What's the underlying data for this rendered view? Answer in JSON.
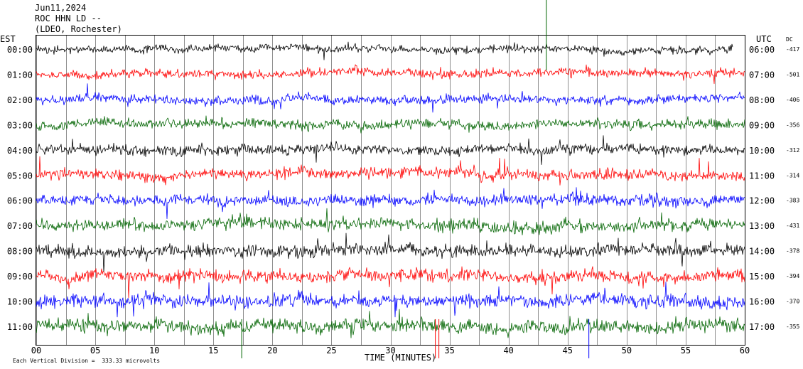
{
  "header": {
    "date": "Jun11,2024",
    "station_line": "ROC HHN LD --",
    "network_line": "(LDEO, Rochester)"
  },
  "left_timezone": "EST",
  "right_timezone": "UTC",
  "dc_header": "DC",
  "footer_note": "Each Vertical Division =  333.33 microvolts",
  "chart_data": {
    "type": "line",
    "title": "",
    "xlabel": "TIME (MINUTES)",
    "xlim": [
      0,
      60
    ],
    "x_ticks": [
      "00",
      "05",
      "10",
      "15",
      "20",
      "25",
      "30",
      "35",
      "40",
      "45",
      "50",
      "55",
      "60"
    ],
    "row_colors": [
      "#000000",
      "#ff0000",
      "#0000ff",
      "#006400"
    ],
    "rows": [
      {
        "est": "00:00",
        "utc": "06:00",
        "dc": "-417",
        "color": "#000000",
        "end_minute": 59
      },
      {
        "est": "01:00",
        "utc": "07:00",
        "dc": "-501",
        "color": "#ff0000",
        "end_minute": 60
      },
      {
        "est": "02:00",
        "utc": "08:00",
        "dc": "-406",
        "color": "#0000ff",
        "end_minute": 60
      },
      {
        "est": "03:00",
        "utc": "09:00",
        "dc": "-356",
        "color": "#006400",
        "end_minute": 60
      },
      {
        "est": "04:00",
        "utc": "10:00",
        "dc": "-312",
        "color": "#000000",
        "end_minute": 60
      },
      {
        "est": "05:00",
        "utc": "11:00",
        "dc": "-314",
        "color": "#ff0000",
        "end_minute": 60
      },
      {
        "est": "06:00",
        "utc": "12:00",
        "dc": "-383",
        "color": "#0000ff",
        "end_minute": 60
      },
      {
        "est": "07:00",
        "utc": "13:00",
        "dc": "-431",
        "color": "#006400",
        "end_minute": 60
      },
      {
        "est": "08:00",
        "utc": "14:00",
        "dc": "-378",
        "color": "#000000",
        "end_minute": 60
      },
      {
        "est": "09:00",
        "utc": "15:00",
        "dc": "-394",
        "color": "#ff0000",
        "end_minute": 60
      },
      {
        "est": "10:00",
        "utc": "16:00",
        "dc": "-370",
        "color": "#0000ff",
        "end_minute": 60
      },
      {
        "est": "11:00",
        "utc": "17:00",
        "dc": "-355",
        "color": "#006400",
        "end_minute": 60
      }
    ],
    "vertical_gridlines_every_minutes": 2.5,
    "events": [
      {
        "minute": 43.2,
        "row_index": 0,
        "color": "#006400",
        "kind": "spike-up"
      },
      {
        "minute": 33.8,
        "row_index": 11,
        "color": "#ff0000",
        "kind": "spike-down"
      },
      {
        "minute": 34.1,
        "row_index": 11,
        "color": "#ff0000",
        "kind": "spike-down"
      },
      {
        "minute": 17.4,
        "row_index": 11,
        "color": "#006400",
        "kind": "spike-down"
      },
      {
        "minute": 46.8,
        "row_index": 11,
        "color": "#0000ff",
        "kind": "spike-down"
      }
    ]
  }
}
